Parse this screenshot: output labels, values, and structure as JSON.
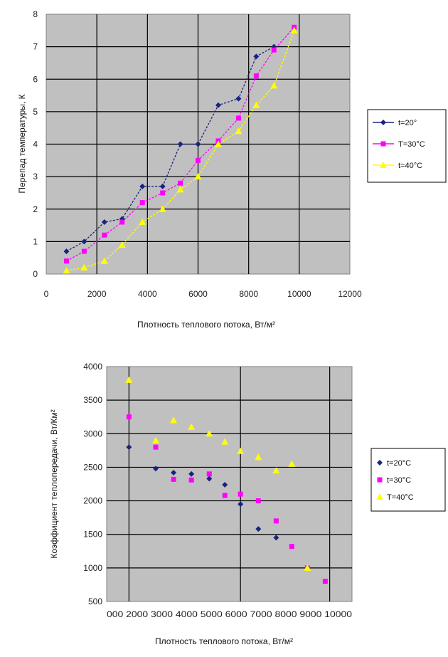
{
  "chart_data": [
    {
      "type": "line",
      "ylabel": "Перепад температуры, К",
      "xlabel": "Плотность теплового потока, Вт/м²",
      "xlim": [
        0,
        12000
      ],
      "ylim": [
        0,
        8
      ],
      "x_ticks": [
        "0",
        "2000",
        "4000",
        "6000",
        "8000",
        "10000",
        "12000"
      ],
      "y_ticks": [
        "0",
        "1",
        "2",
        "3",
        "4",
        "5",
        "6",
        "7",
        "8"
      ],
      "grid": "on",
      "legend_position": "right",
      "series": [
        {
          "name": "t=20°",
          "color": "#1a237e",
          "marker": "diamond",
          "line": "dash",
          "x": [
            800,
            1500,
            2300,
            3000,
            3800,
            4600,
            5300,
            6000,
            6800,
            7600,
            8300,
            9000
          ],
          "y": [
            0.7,
            1.0,
            1.6,
            1.7,
            2.7,
            2.7,
            4.0,
            4.0,
            5.2,
            5.4,
            6.7,
            7.0
          ]
        },
        {
          "name": "T=30°C",
          "color": "#ff00ff",
          "marker": "square",
          "line": "dash",
          "x": [
            800,
            1500,
            2300,
            3000,
            3800,
            4600,
            5300,
            6000,
            6800,
            7600,
            8300,
            9000,
            9800
          ],
          "y": [
            0.4,
            0.7,
            1.2,
            1.6,
            2.2,
            2.5,
            2.8,
            3.5,
            4.1,
            4.8,
            6.1,
            6.9,
            7.6
          ]
        },
        {
          "name": "t=40°C",
          "color": "#ffff00",
          "marker": "triangle",
          "line": "dash",
          "x": [
            800,
            1500,
            2300,
            3000,
            3800,
            4600,
            5300,
            6000,
            6800,
            7600,
            8300,
            9000,
            9800
          ],
          "y": [
            0.1,
            0.2,
            0.4,
            0.9,
            1.6,
            2.0,
            2.6,
            3.0,
            4.0,
            4.4,
            5.2,
            5.8,
            7.5
          ]
        }
      ]
    },
    {
      "type": "scatter",
      "ylabel": "Коэффициент теплопередачи, Вт/Км²",
      "xlabel": "Плотность теплового потока, Вт/м²",
      "xlim": [
        0,
        11000
      ],
      "ylim": [
        500,
        4000
      ],
      "x_ticks": [
        "0",
        "1000",
        "2000",
        "3000",
        "4000",
        "5000",
        "6000",
        "7000",
        "8000",
        "9000",
        "10000"
      ],
      "x_ticks_visible_text": "000 2000 3000 4000 5000 6000 7000 8000 9000 10000",
      "y_ticks": [
        "500",
        "1000",
        "1500",
        "2000",
        "2500",
        "3000",
        "3500",
        "4000"
      ],
      "y_tick_text": [
        "500",
        "1000",
        "1500",
        "2000",
        "2500",
        "3000",
        "3500",
        "4000"
      ],
      "grid": "on",
      "legend_position": "right",
      "series": [
        {
          "name": "t=20°C",
          "color": "#1a237e",
          "marker": "diamond",
          "x": [
            1000,
            2200,
            3000,
            3800,
            4600,
            5300,
            6000,
            6800,
            7600
          ],
          "y": [
            2800,
            2480,
            2420,
            2400,
            2330,
            2240,
            1950,
            1580,
            1450
          ]
        },
        {
          "name": "t=30°C",
          "color": "#ff00ff",
          "marker": "square",
          "x": [
            1000,
            2200,
            3000,
            3800,
            4600,
            5300,
            6000,
            6800,
            7600,
            8300,
            9000,
            9800
          ],
          "y": [
            3250,
            2800,
            2320,
            2310,
            2400,
            2080,
            2100,
            2000,
            1700,
            1320,
            1000,
            800
          ]
        },
        {
          "name": "T=40°C",
          "color": "#ffff00",
          "marker": "triangle",
          "x": [
            1000,
            2200,
            3000,
            3800,
            4600,
            5300,
            6000,
            6800,
            7600,
            8300,
            9000
          ],
          "y": [
            3800,
            2900,
            3200,
            3100,
            3000,
            2880,
            2740,
            2650,
            2450,
            2550,
            1000
          ]
        }
      ]
    }
  ]
}
